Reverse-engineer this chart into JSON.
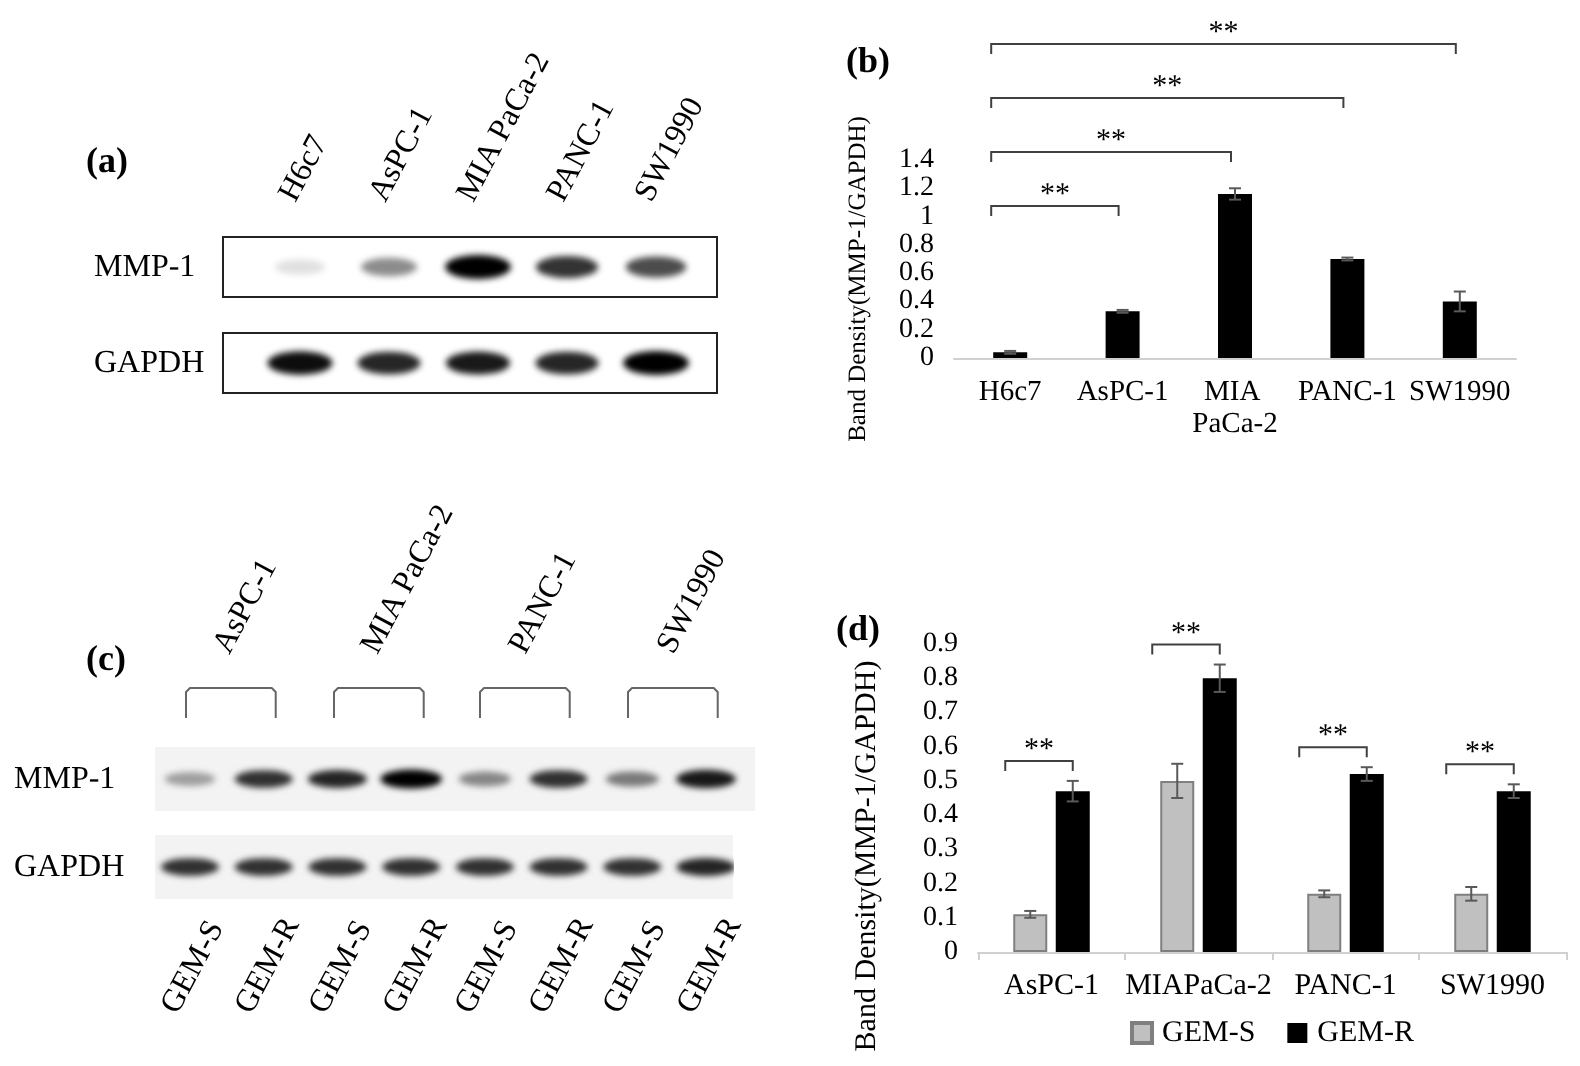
{
  "chart_data": [
    {
      "type": "other",
      "title": "(a)",
      "categories": [
        "H6c7",
        "AsPC-1",
        "MIA PaCa-2",
        "PANC-1",
        "SW1990"
      ],
      "y_categories": [
        "MMP-1",
        "GAPDH"
      ]
    },
    {
      "type": "bar",
      "title": "(b)",
      "categories": [
        "H6c7",
        "AsPC-1",
        "MIA PaCa-2",
        "PANC-1",
        "SW1990"
      ],
      "values": [
        0.04,
        0.33,
        1.16,
        0.7,
        0.4
      ],
      "errors": [
        0.01,
        0.01,
        0.04,
        0.01,
        0.07
      ],
      "color": "#000000",
      "ylabel": "Band Density(MMP-1/GAPDH)",
      "ylim": [
        0,
        1.4
      ],
      "yticks": [
        0,
        0.2,
        0.4,
        0.6,
        0.8,
        1,
        1.2,
        1.4
      ],
      "annotations": [
        "**",
        "**",
        "**",
        "**"
      ]
    },
    {
      "type": "other",
      "title": "(c)",
      "annotations": [
        "AsPC-1",
        "MIA PaCa-2",
        "PANC-1",
        "SW1990"
      ],
      "categories": [
        "GEM-S",
        "GEM-R",
        "GEM-S",
        "GEM-R",
        "GEM-S",
        "GEM-R",
        "GEM-S",
        "GEM-R"
      ],
      "y_categories": [
        "MMP-1",
        "GAPDH"
      ]
    },
    {
      "type": "bar",
      "title": "(d)",
      "categories": [
        "AsPC-1",
        "MIAPaCa-2",
        "PANC-1",
        "SW1990"
      ],
      "series": [
        {
          "name": "GEM-S",
          "color": "#c0c0c0",
          "values": [
            0.11,
            0.5,
            0.17,
            0.17
          ],
          "errors": [
            0.01,
            0.05,
            0.01,
            0.02
          ]
        },
        {
          "name": "GEM-R",
          "color": "#000000",
          "values": [
            0.47,
            0.8,
            0.52,
            0.47
          ],
          "errors": [
            0.03,
            0.04,
            0.02,
            0.02
          ]
        }
      ],
      "ylabel": "Band Density(MMP-1/GAPDH)",
      "ylim": [
        0,
        0.9
      ],
      "yticks": [
        0,
        0.1,
        0.2,
        0.3,
        0.4,
        0.5,
        0.6,
        0.7,
        0.8,
        0.9
      ],
      "legend": "bottom",
      "annotations": [
        "**",
        "**",
        "**",
        "**"
      ]
    }
  ]
}
